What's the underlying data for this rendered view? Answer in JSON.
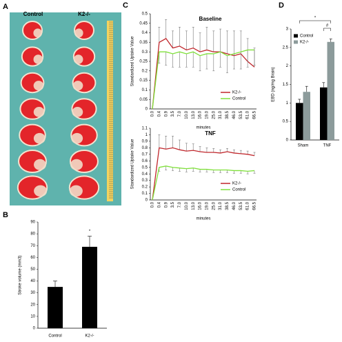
{
  "image_panel": {
    "label": "A",
    "columns": [
      "Control",
      "K2-/-"
    ]
  },
  "chart_data": [
    {
      "type": "bar",
      "label": "B",
      "ylabel": "Stroke volume (mm3)",
      "categories": [
        "Control",
        "K2-/-"
      ],
      "values": [
        35,
        69
      ],
      "errors": [
        5,
        9
      ],
      "color": "#000000",
      "ylim": [
        0,
        90
      ],
      "yticks": [
        0,
        10,
        20,
        30,
        40,
        50,
        60,
        70,
        80,
        90
      ],
      "annotations": [
        "*"
      ]
    },
    {
      "type": "line",
      "label": "C",
      "title": "Baseline",
      "xlabel": "minutes",
      "ylabel": "Standardized Uptake Value",
      "legend": "lower right",
      "categories": [
        "0.0",
        "0.4",
        "0.9",
        "3.5",
        "7.0",
        "10.0",
        "13.0",
        "16.0",
        "19.0",
        "25.0",
        "31.0",
        "38.5",
        "46.0",
        "53.5",
        "61.0",
        "66.5"
      ],
      "series": [
        {
          "name": "K2-/-",
          "color": "#c0262b",
          "values": [
            0.0,
            0.35,
            0.37,
            0.32,
            0.33,
            0.31,
            0.32,
            0.3,
            0.31,
            0.3,
            0.3,
            0.29,
            0.28,
            0.29,
            0.25,
            0.22
          ],
          "errors": [
            0,
            0.08,
            0.1,
            0.09,
            0.1,
            0.1,
            0.11,
            0.1,
            0.12,
            0.11,
            0.12,
            0.12,
            0.13,
            0.12,
            0.12,
            0.1
          ]
        },
        {
          "name": "Control",
          "color": "#7fe03a",
          "values": [
            0.0,
            0.3,
            0.3,
            0.29,
            0.3,
            0.29,
            0.3,
            0.28,
            0.29,
            0.29,
            0.3,
            0.28,
            0.29,
            0.3,
            0.31,
            0.31
          ],
          "errors": [
            0,
            0.06,
            0.07,
            0.07,
            0.08,
            0.07,
            0.08,
            0.08,
            0.08,
            0.09,
            0.08,
            0.09,
            0.08,
            0.09,
            0.09,
            0.08
          ]
        }
      ],
      "ylim": [
        0,
        0.5
      ],
      "yticks": [
        0,
        0.05,
        0.1,
        0.15,
        0.2,
        0.25,
        0.3,
        0.35,
        0.4,
        0.45,
        0.5
      ]
    },
    {
      "type": "line",
      "title": "TNF",
      "xlabel": "minutes",
      "ylabel": "Standardized Uptake Value",
      "legend": "lower right",
      "categories": [
        "0.0",
        "0.4",
        "0.9",
        "3.5",
        "7.0",
        "10.0",
        "13.0",
        "16.0",
        "19.0",
        "25.0",
        "31.0",
        "38.5",
        "46.0",
        "53.5",
        "61.0",
        "66.5"
      ],
      "series": [
        {
          "name": "K2-/-",
          "color": "#c0262b",
          "values": [
            0,
            0.8,
            0.78,
            0.8,
            0.77,
            0.75,
            0.76,
            0.74,
            0.73,
            0.73,
            0.72,
            0.74,
            0.72,
            0.71,
            0.7,
            0.68
          ],
          "errors": [
            0,
            0.2,
            0.2,
            0.18,
            0.15,
            0.12,
            0.1,
            0.08,
            0.07,
            0.06,
            0.05,
            0.05,
            0.05,
            0.05,
            0.05,
            0.05
          ]
        },
        {
          "name": "Control",
          "color": "#7fe03a",
          "values": [
            0,
            0.5,
            0.52,
            0.5,
            0.49,
            0.48,
            0.49,
            0.47,
            0.47,
            0.46,
            0.46,
            0.46,
            0.45,
            0.45,
            0.44,
            0.45
          ],
          "errors": [
            0,
            0.06,
            0.06,
            0.05,
            0.05,
            0.05,
            0.05,
            0.04,
            0.04,
            0.04,
            0.04,
            0.04,
            0.04,
            0.04,
            0.04,
            0.04
          ]
        }
      ],
      "ylim": [
        0,
        1.1
      ],
      "yticks": [
        0,
        0.1,
        0.2,
        0.3,
        0.4,
        0.5,
        0.6,
        0.7,
        0.8,
        0.9,
        1,
        1.1
      ]
    },
    {
      "type": "grouped_bar",
      "label": "D",
      "ylabel": "EBD (ng/mg Brain)",
      "legend": "upper left",
      "categories": [
        "Sham",
        "TNF"
      ],
      "series": [
        {
          "name": "Control",
          "color": "#000000",
          "values": [
            1.0,
            1.42
          ],
          "errors": [
            0.1,
            0.13
          ]
        },
        {
          "name": "K2-/-",
          "color": "#8c9b9b",
          "values": [
            1.3,
            2.65
          ],
          "errors": [
            0.15,
            0.08
          ]
        }
      ],
      "ylim": [
        0,
        3
      ],
      "yticks": [
        0,
        0.5,
        1,
        1.5,
        2,
        2.5,
        3
      ],
      "annotations": [
        "*",
        "#"
      ]
    }
  ]
}
